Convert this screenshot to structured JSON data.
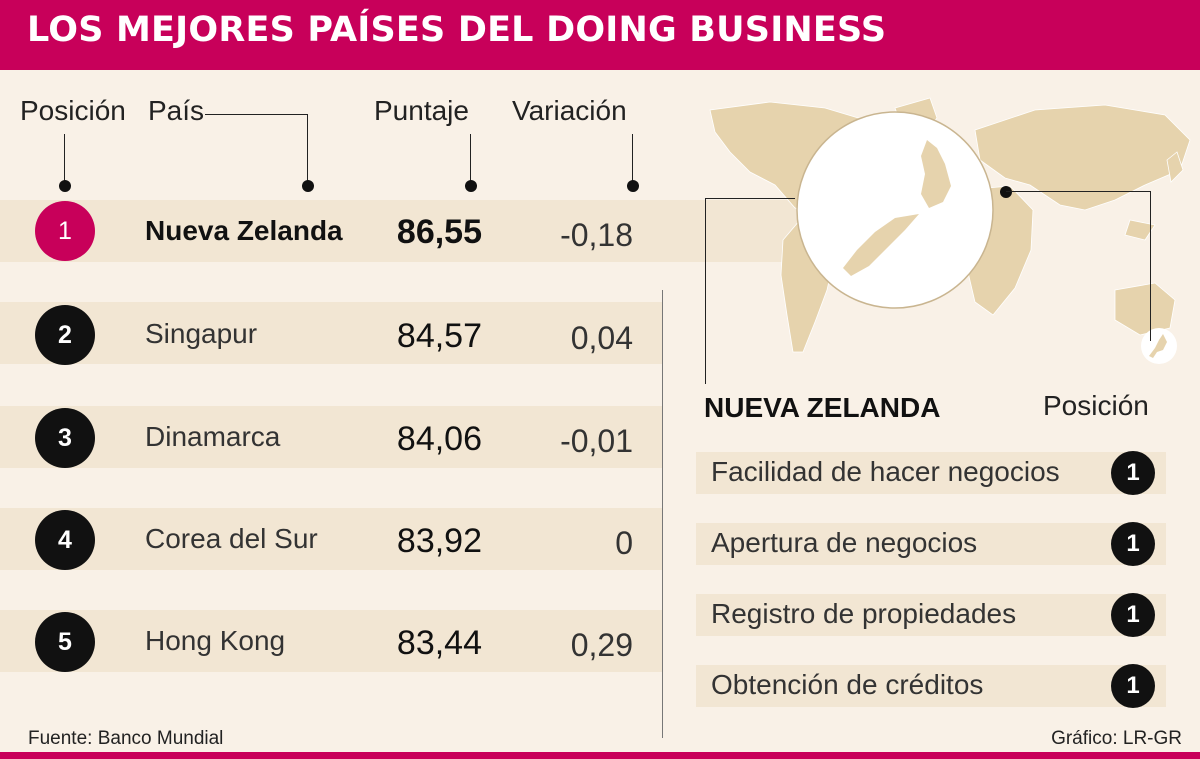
{
  "title": "LOS MEJORES PAÍSES DEL DOING BUSINESS",
  "columns": {
    "position": "Posición",
    "country": "País",
    "score": "Puntaje",
    "variation": "Variación"
  },
  "rows": [
    {
      "rank": "1",
      "country": "Nueva Zelanda",
      "score": "86,55",
      "variation": "-0,18"
    },
    {
      "rank": "2",
      "country": "Singapur",
      "score": "84,57",
      "variation": "0,04"
    },
    {
      "rank": "3",
      "country": "Dinamarca",
      "score": "84,06",
      "variation": "-0,01"
    },
    {
      "rank": "4",
      "country": "Corea del Sur",
      "score": "83,92",
      "variation": "0"
    },
    {
      "rank": "5",
      "country": "Hong Kong",
      "score": "83,44",
      "variation": "0,29"
    }
  ],
  "detail": {
    "country": "NUEVA ZELANDA",
    "position_header": "Posición",
    "items": [
      {
        "label": "Facilidad de hacer negocios",
        "rank": "1"
      },
      {
        "label": "Apertura de negocios",
        "rank": "1"
      },
      {
        "label": "Registro de propiedades",
        "rank": "1"
      },
      {
        "label": "Obtención de créditos",
        "rank": "1"
      }
    ]
  },
  "colors": {
    "accent": "#c8005a",
    "background": "#f9f1e7",
    "band": "#f2e6d3",
    "map_land": "#e6d3ad"
  },
  "footer": {
    "source": "Fuente: Banco Mundial",
    "credit": "Gráfico: LR-GR"
  }
}
